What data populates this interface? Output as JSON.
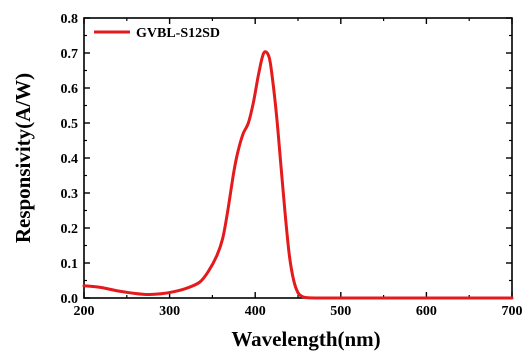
{
  "chart_data": {
    "type": "line",
    "title": "",
    "xlabel": "Wavelength(nm)",
    "ylabel": "Responsivity(A/W)",
    "xlim": [
      200,
      700
    ],
    "ylim": [
      0.0,
      0.8
    ],
    "x_ticks": [
      200,
      300,
      400,
      500,
      600,
      700
    ],
    "y_ticks": [
      0.0,
      0.1,
      0.2,
      0.3,
      0.4,
      0.5,
      0.6,
      0.7,
      0.8
    ],
    "x_tick_labels": [
      "200",
      "300",
      "400",
      "500",
      "600",
      "700"
    ],
    "y_tick_labels": [
      "0.0",
      "0.1",
      "0.2",
      "0.3",
      "0.4",
      "0.5",
      "0.6",
      "0.7",
      "0.8"
    ],
    "grid": false,
    "legend_position": "top-left",
    "series": [
      {
        "name": "GVBL-S12SD",
        "color": "#e41a1c",
        "x": [
          200,
          220,
          240,
          260,
          275,
          290,
          305,
          320,
          335,
          345,
          355,
          362,
          368,
          375,
          380,
          386,
          392,
          398,
          404,
          410,
          416,
          420,
          425,
          430,
          435,
          440,
          445,
          450,
          455,
          460,
          470,
          500,
          550,
          600,
          650,
          700
        ],
        "y": [
          0.035,
          0.03,
          0.02,
          0.013,
          0.01,
          0.012,
          0.018,
          0.028,
          0.045,
          0.075,
          0.12,
          0.17,
          0.25,
          0.36,
          0.42,
          0.47,
          0.5,
          0.56,
          0.64,
          0.7,
          0.69,
          0.63,
          0.52,
          0.38,
          0.24,
          0.12,
          0.05,
          0.015,
          0.004,
          0.001,
          0.0,
          0.0,
          0.0,
          0.0,
          0.0,
          0.0
        ]
      }
    ]
  }
}
